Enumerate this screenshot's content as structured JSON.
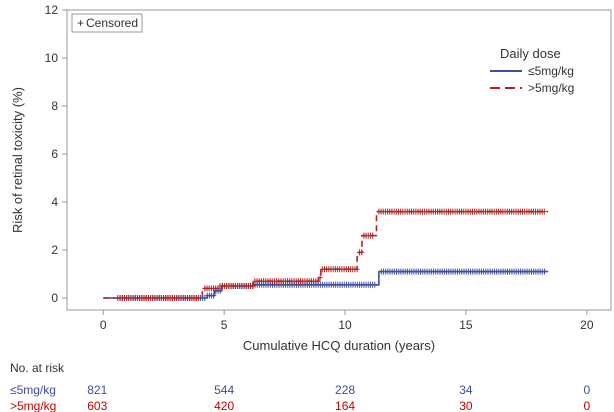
{
  "chart_data": {
    "type": "line",
    "subtype": "kaplan-meier-cumulative-incidence",
    "xlabel": "Cumulative HCQ duration (years)",
    "ylabel": "Risk of retinal toxicity (%)",
    "xlim": [
      -1.5,
      21
    ],
    "ylim": [
      -0.5,
      12
    ],
    "xticks": [
      0,
      5,
      10,
      15,
      20
    ],
    "yticks": [
      0,
      2,
      4,
      6,
      8,
      10,
      12
    ],
    "grid": false,
    "censored_label": "Censored",
    "censored_marker": "+",
    "legend": {
      "title": "Daily dose",
      "placement": "top-right",
      "entries": [
        {
          "label": "≤5mg/kg",
          "color": "#3b4fa0",
          "style": "solid"
        },
        {
          "label": ">5mg/kg",
          "color": "#b22222",
          "style": "dashed"
        }
      ]
    },
    "series": [
      {
        "name": "≤5mg/kg",
        "color": "#3b4fa0",
        "dash": "",
        "steps": [
          [
            0,
            0
          ],
          [
            4.3,
            0.1
          ],
          [
            4.6,
            0.3
          ],
          [
            4.9,
            0.5
          ],
          [
            6.2,
            0.55
          ],
          [
            11.4,
            1.1
          ],
          [
            18.4,
            1.1
          ]
        ],
        "censor_ranges": [
          [
            0.6,
            4.2
          ],
          [
            4.3,
            11.3
          ],
          [
            11.5,
            18.3
          ]
        ]
      },
      {
        "name": ">5mg/kg",
        "color": "#b22222",
        "dash": "6,4",
        "steps": [
          [
            0,
            0
          ],
          [
            4.1,
            0.4
          ],
          [
            4.8,
            0.5
          ],
          [
            6.2,
            0.7
          ],
          [
            8.9,
            0.85
          ],
          [
            9.0,
            1.2
          ],
          [
            10.5,
            1.9
          ],
          [
            10.7,
            2.6
          ],
          [
            11.3,
            3.6
          ],
          [
            18.4,
            3.6
          ]
        ],
        "censor_ranges": [
          [
            0.7,
            4.0
          ],
          [
            4.2,
            10.5
          ],
          [
            10.6,
            11.2
          ],
          [
            11.4,
            18.3
          ]
        ]
      }
    ]
  },
  "risk_table": {
    "title": "No. at risk",
    "rows": [
      {
        "label": "≤5mg/kg",
        "color": "#3b4fa0",
        "values": [
          "821",
          "544",
          "228",
          "34",
          "0"
        ]
      },
      {
        "label": ">5mg/kg",
        "color": "#cc0000",
        "values": [
          "603",
          "420",
          "164",
          "30",
          "0"
        ]
      }
    ],
    "x_positions": [
      0,
      5,
      10,
      15,
      20
    ]
  }
}
